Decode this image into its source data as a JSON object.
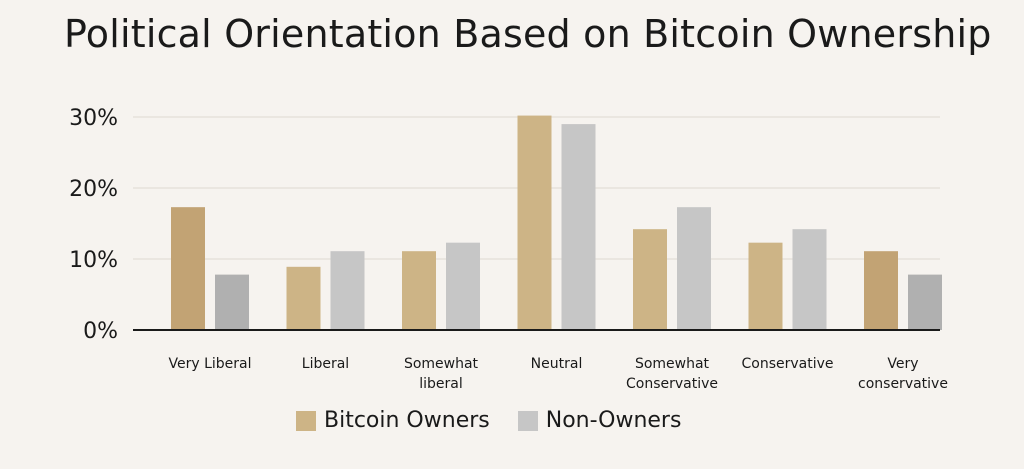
{
  "chart_data": {
    "type": "bar",
    "title": "Political Orientation Based on Bitcoin Ownership",
    "categories": [
      [
        "Very Liberal"
      ],
      [
        "Liberal"
      ],
      [
        "Somewhat",
        "liberal"
      ],
      [
        "Neutral"
      ],
      [
        "Somewhat",
        "Conservative"
      ],
      [
        "Conservative"
      ],
      [
        "Very",
        "conservative"
      ]
    ],
    "series": [
      {
        "name": "Bitcoin Owners",
        "values": [
          17.3,
          8.9,
          11.1,
          30.2,
          14.2,
          12.3,
          11.1
        ],
        "colors": [
          "#c2a374",
          "#cdb486",
          "#cdb486",
          "#cdb486",
          "#cdb486",
          "#cdb486",
          "#c2a374"
        ]
      },
      {
        "name": "Non-Owners",
        "values": [
          7.8,
          11.1,
          12.3,
          29.0,
          17.3,
          14.2,
          7.8
        ],
        "colors": [
          "#b0b0b0",
          "#c6c6c6",
          "#c6c6c6",
          "#c6c6c6",
          "#c6c6c6",
          "#c6c6c6",
          "#b0b0b0"
        ]
      }
    ],
    "yticks": [
      "0%",
      "10%",
      "20%",
      "30%"
    ],
    "ytick_values": [
      0,
      10,
      20,
      30
    ],
    "ylim": [
      0,
      30
    ],
    "grid": true,
    "legend_position": "bottom-center",
    "colors": {
      "owners": "#cdb486",
      "non_owners": "#c6c6c6",
      "axis": "#1a1a1a",
      "grid": "#e6e1db"
    }
  },
  "legend": {
    "owners_label": "Bitcoin Owners",
    "non_owners_label": "Non-Owners"
  }
}
